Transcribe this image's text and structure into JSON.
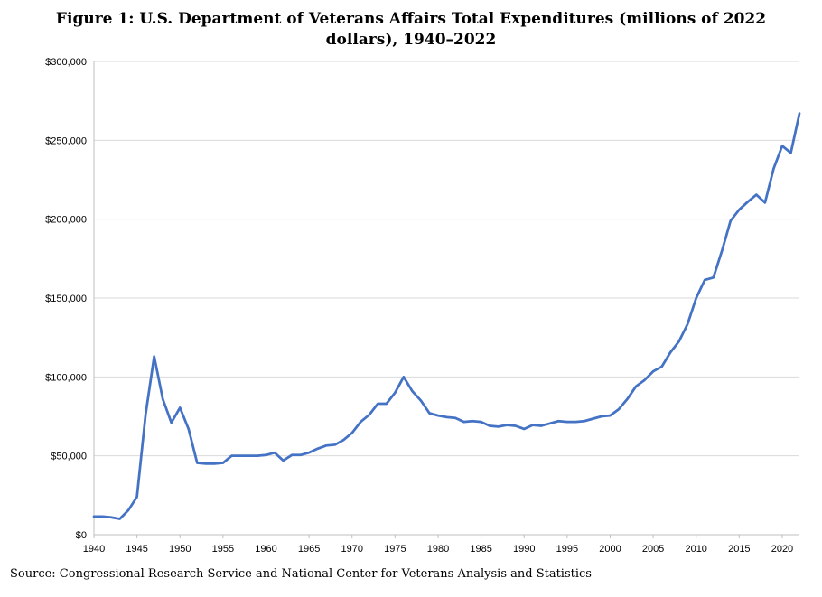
{
  "title_line1": "Figure 1: U.S. Department of Veterans Affairs Total Expenditures (millions of 2022",
  "title_line2": "dollars), 1940–2022",
  "source": "Source: Congressional Research Service and National Center for Veterans Analysis and Statistics",
  "colors": {
    "line": "#4472C4",
    "grid": "#D9D9D9",
    "axis": "#BFBFBF"
  },
  "chart_data": {
    "type": "line",
    "title": "Figure 1: U.S. Department of Veterans Affairs Total Expenditures (millions of 2022 dollars), 1940–2022",
    "xlabel": "",
    "ylabel": "",
    "xlim": [
      1940,
      2022
    ],
    "ylim": [
      0,
      300000
    ],
    "x_ticks": [
      1940,
      1945,
      1950,
      1955,
      1960,
      1965,
      1970,
      1975,
      1980,
      1985,
      1990,
      1995,
      2000,
      2005,
      2010,
      2015,
      2020
    ],
    "x_tick_labels": [
      "1940",
      "1945",
      "1950",
      "1955",
      "1960",
      "1965",
      "1970",
      "1975",
      "1980",
      "1985",
      "1990",
      "1995",
      "2000",
      "2005",
      "2010",
      "2015",
      "2020"
    ],
    "y_ticks": [
      0,
      50000,
      100000,
      150000,
      200000,
      250000,
      300000
    ],
    "y_tick_labels": [
      "$0",
      "$50,000",
      "$100,000",
      "$150,000",
      "$200,000",
      "$250,000",
      "$300,000"
    ],
    "grid": true,
    "series": [
      {
        "name": "Total Expenditures",
        "x": [
          1940,
          1941,
          1942,
          1943,
          1944,
          1945,
          1946,
          1947,
          1948,
          1949,
          1950,
          1951,
          1952,
          1953,
          1954,
          1955,
          1956,
          1957,
          1958,
          1959,
          1960,
          1961,
          1962,
          1963,
          1964,
          1965,
          1966,
          1967,
          1968,
          1969,
          1970,
          1971,
          1972,
          1973,
          1974,
          1975,
          1976,
          1977,
          1978,
          1979,
          1980,
          1981,
          1982,
          1983,
          1984,
          1985,
          1986,
          1987,
          1988,
          1989,
          1990,
          1991,
          1992,
          1993,
          1994,
          1995,
          1996,
          1997,
          1998,
          1999,
          2000,
          2001,
          2002,
          2003,
          2004,
          2005,
          2006,
          2007,
          2008,
          2009,
          2010,
          2011,
          2012,
          2013,
          2014,
          2015,
          2016,
          2017,
          2018,
          2019,
          2020,
          2021,
          2022
        ],
        "values": [
          11500,
          11500,
          11000,
          10000,
          15500,
          24000,
          76000,
          113000,
          86000,
          71000,
          80500,
          67000,
          45500,
          45000,
          45000,
          45500,
          50000,
          50000,
          50000,
          50000,
          50500,
          52000,
          47000,
          50500,
          50500,
          52000,
          54500,
          56500,
          57000,
          60000,
          64500,
          71500,
          76000,
          83000,
          83000,
          90000,
          100000,
          91000,
          85000,
          77000,
          75500,
          74500,
          74000,
          71500,
          72000,
          71500,
          69000,
          68500,
          69500,
          69000,
          67000,
          69500,
          69000,
          70500,
          72000,
          71500,
          71500,
          72000,
          73500,
          75000,
          75500,
          79500,
          86000,
          94000,
          98000,
          103500,
          106500,
          115500,
          122500,
          133500,
          150000,
          161500,
          163000,
          180000,
          199000,
          206000,
          211000,
          215500,
          210500,
          232000,
          246500,
          242000,
          267000
        ]
      }
    ]
  }
}
